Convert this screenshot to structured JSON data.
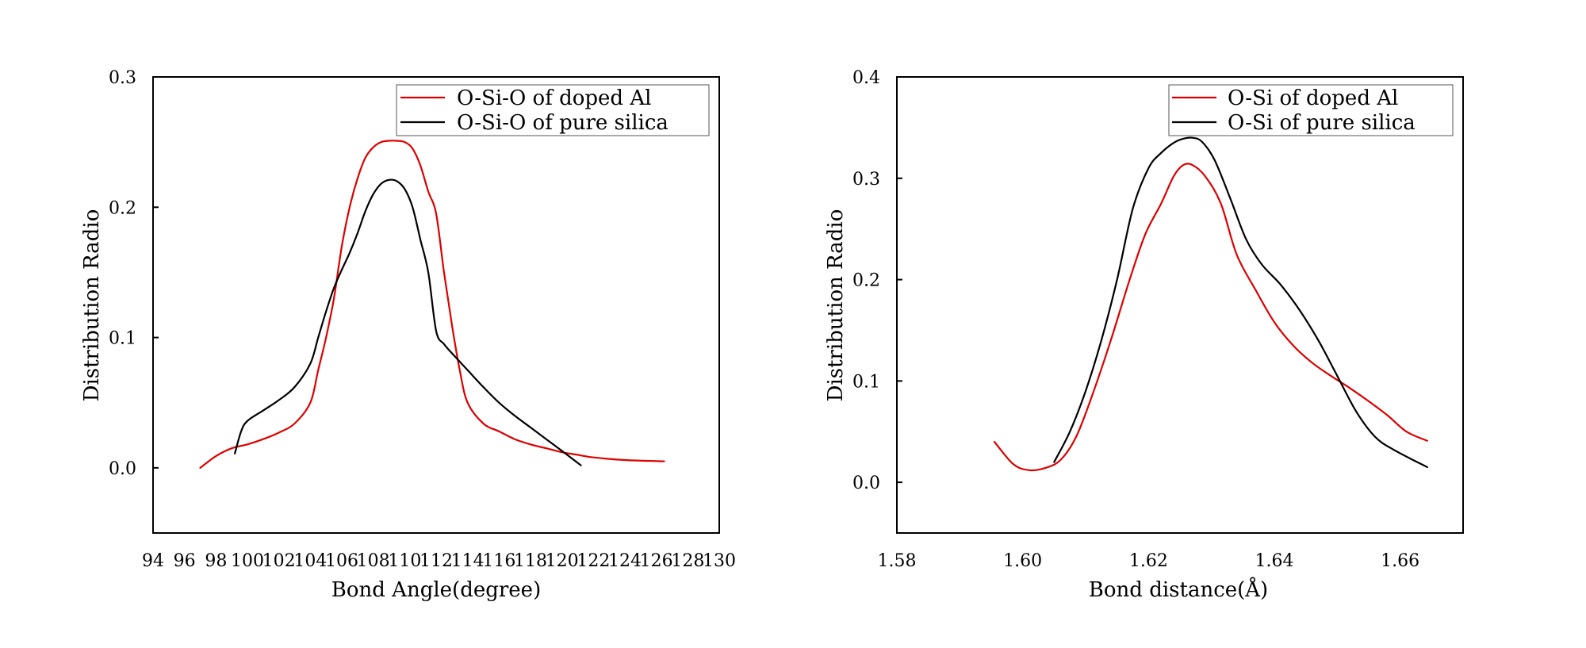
{
  "chart_data": [
    {
      "type": "line",
      "title": "",
      "xlabel": "Bond Angle(degree)",
      "ylabel": "Distribution Radio",
      "xlim": [
        94,
        130
      ],
      "ylim": [
        -0.05,
        0.3
      ],
      "xticks": [
        94,
        96,
        98,
        100,
        102,
        104,
        106,
        108,
        110,
        112,
        114,
        116,
        118,
        120,
        122,
        124,
        126,
        128,
        130
      ],
      "xtick_labels": [
        "94",
        "96",
        "98",
        "100",
        "102",
        "104",
        "106",
        "108",
        "110",
        "112",
        "114",
        "116",
        "118",
        "120",
        "122",
        "124",
        "126",
        "128",
        "130"
      ],
      "yticks": [
        0.0,
        0.1,
        0.2,
        0.3
      ],
      "ytick_labels": [
        "0.0",
        "0.1",
        "0.2",
        "0.3"
      ],
      "grid": false,
      "legend_position": "top-right",
      "series": [
        {
          "name": "O-Si-O of doped Al",
          "color": "#dd0000",
          "x": [
            97,
            98,
            99,
            100,
            101,
            102,
            103,
            104,
            104.5,
            105,
            105.5,
            106,
            106.5,
            107,
            107.5,
            108,
            108.5,
            109,
            109.5,
            110,
            110.5,
            111,
            111.5,
            112,
            112.5,
            113,
            113.5,
            114,
            115,
            116,
            117,
            118,
            119,
            120,
            121,
            122,
            124,
            126.5
          ],
          "y": [
            0.0,
            0.009,
            0.015,
            0.018,
            0.022,
            0.027,
            0.034,
            0.05,
            0.075,
            0.1,
            0.13,
            0.17,
            0.2,
            0.222,
            0.238,
            0.246,
            0.25,
            0.251,
            0.251,
            0.25,
            0.245,
            0.232,
            0.212,
            0.195,
            0.15,
            0.11,
            0.075,
            0.05,
            0.034,
            0.028,
            0.022,
            0.018,
            0.015,
            0.012,
            0.01,
            0.008,
            0.006,
            0.005
          ]
        },
        {
          "name": "O-Si-O of pure silica",
          "color": "#000000",
          "x": [
            99.2,
            99.6,
            100,
            101,
            102,
            103,
            104,
            104.5,
            105,
            105.5,
            106,
            106.5,
            107,
            107.5,
            108,
            108.5,
            109,
            109.5,
            110,
            110.5,
            111,
            111.5,
            112,
            112.5,
            113,
            114,
            115,
            116,
            117,
            118,
            119,
            120,
            121.2
          ],
          "y": [
            0.011,
            0.028,
            0.036,
            0.044,
            0.052,
            0.062,
            0.08,
            0.1,
            0.12,
            0.138,
            0.152,
            0.165,
            0.18,
            0.197,
            0.21,
            0.218,
            0.221,
            0.22,
            0.214,
            0.2,
            0.175,
            0.15,
            0.105,
            0.095,
            0.088,
            0.075,
            0.062,
            0.05,
            0.04,
            0.031,
            0.022,
            0.013,
            0.002
          ]
        }
      ]
    },
    {
      "type": "line",
      "title": "",
      "xlabel": "Bond distance(Å)",
      "ylabel": "Distribution Radio",
      "xlim": [
        1.58,
        1.67
      ],
      "ylim": [
        -0.05,
        0.4
      ],
      "xticks": [
        1.58,
        1.6,
        1.62,
        1.64,
        1.66
      ],
      "xtick_labels": [
        "1.58",
        "1.60",
        "1.62",
        "1.64",
        "1.66"
      ],
      "yticks": [
        0.0,
        0.1,
        0.2,
        0.3,
        0.4
      ],
      "ytick_labels": [
        "0.0",
        "0.1",
        "0.2",
        "0.3",
        "0.4"
      ],
      "grid": false,
      "legend_position": "top-right",
      "series": [
        {
          "name": "O-Si of doped Al",
          "color": "#dd0000",
          "x": [
            1.5955,
            1.5985,
            1.601,
            1.6035,
            1.606,
            1.6085,
            1.611,
            1.614,
            1.617,
            1.6195,
            1.622,
            1.624,
            1.6255,
            1.627,
            1.629,
            1.6315,
            1.634,
            1.637,
            1.64,
            1.643,
            1.646,
            1.649,
            1.652,
            1.655,
            1.658,
            1.661,
            1.6643
          ],
          "y": [
            0.04,
            0.018,
            0.012,
            0.014,
            0.022,
            0.045,
            0.085,
            0.14,
            0.2,
            0.245,
            0.275,
            0.302,
            0.313,
            0.313,
            0.302,
            0.275,
            0.225,
            0.19,
            0.158,
            0.135,
            0.118,
            0.105,
            0.093,
            0.08,
            0.066,
            0.05,
            0.041
          ]
        },
        {
          "name": "O-Si of pure silica",
          "color": "#000000",
          "x": [
            1.605,
            1.6075,
            1.61,
            1.6125,
            1.615,
            1.6175,
            1.62,
            1.622,
            1.624,
            1.6255,
            1.627,
            1.6285,
            1.6305,
            1.633,
            1.6355,
            1.638,
            1.641,
            1.644,
            1.647,
            1.65,
            1.653,
            1.656,
            1.659,
            1.6643
          ],
          "y": [
            0.02,
            0.05,
            0.09,
            0.14,
            0.2,
            0.27,
            0.31,
            0.325,
            0.335,
            0.339,
            0.34,
            0.336,
            0.318,
            0.28,
            0.24,
            0.215,
            0.195,
            0.17,
            0.14,
            0.105,
            0.07,
            0.045,
            0.032,
            0.015
          ]
        }
      ]
    }
  ]
}
